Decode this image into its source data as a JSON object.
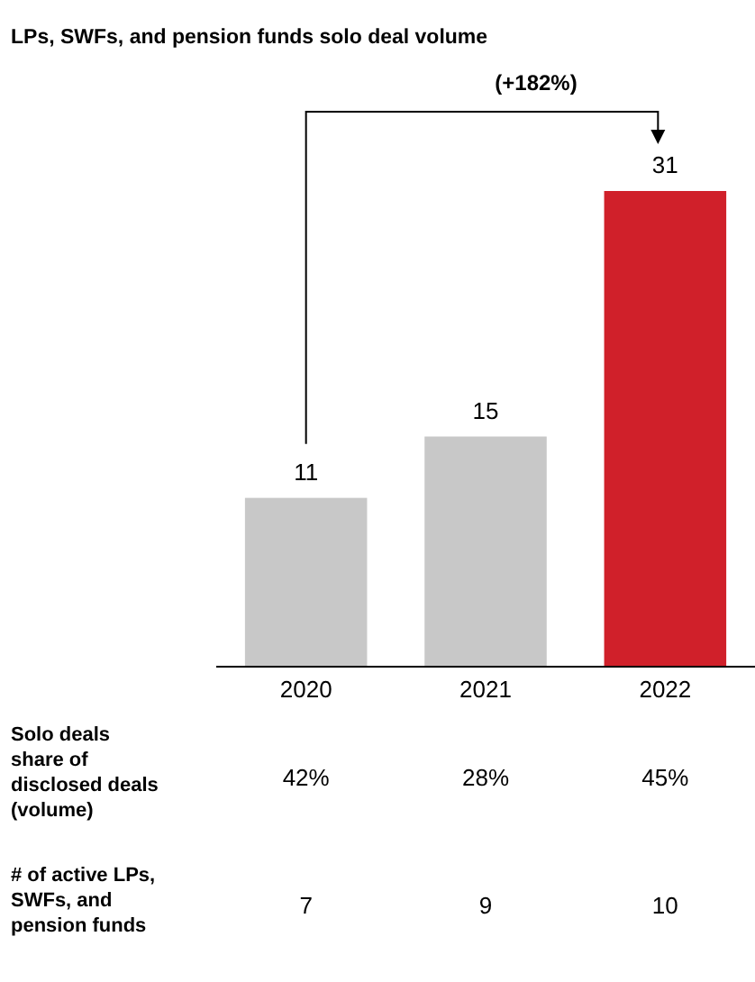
{
  "chart_data": {
    "type": "bar",
    "title": "LPs, SWFs, and pension funds solo deal volume",
    "categories": [
      "2020",
      "2021",
      "2022"
    ],
    "values": [
      11,
      15,
      31
    ],
    "colors": [
      "#c8c8c8",
      "#c8c8c8",
      "#d0202a"
    ],
    "data_labels": true,
    "annotations": [
      "(+182%)",
      "Solo deals share of disclosed deals (volume)",
      "42%",
      "28%",
      "45%",
      "# of active LPs, SWFs, and pension funds",
      "7",
      "9",
      "10"
    ]
  }
}
